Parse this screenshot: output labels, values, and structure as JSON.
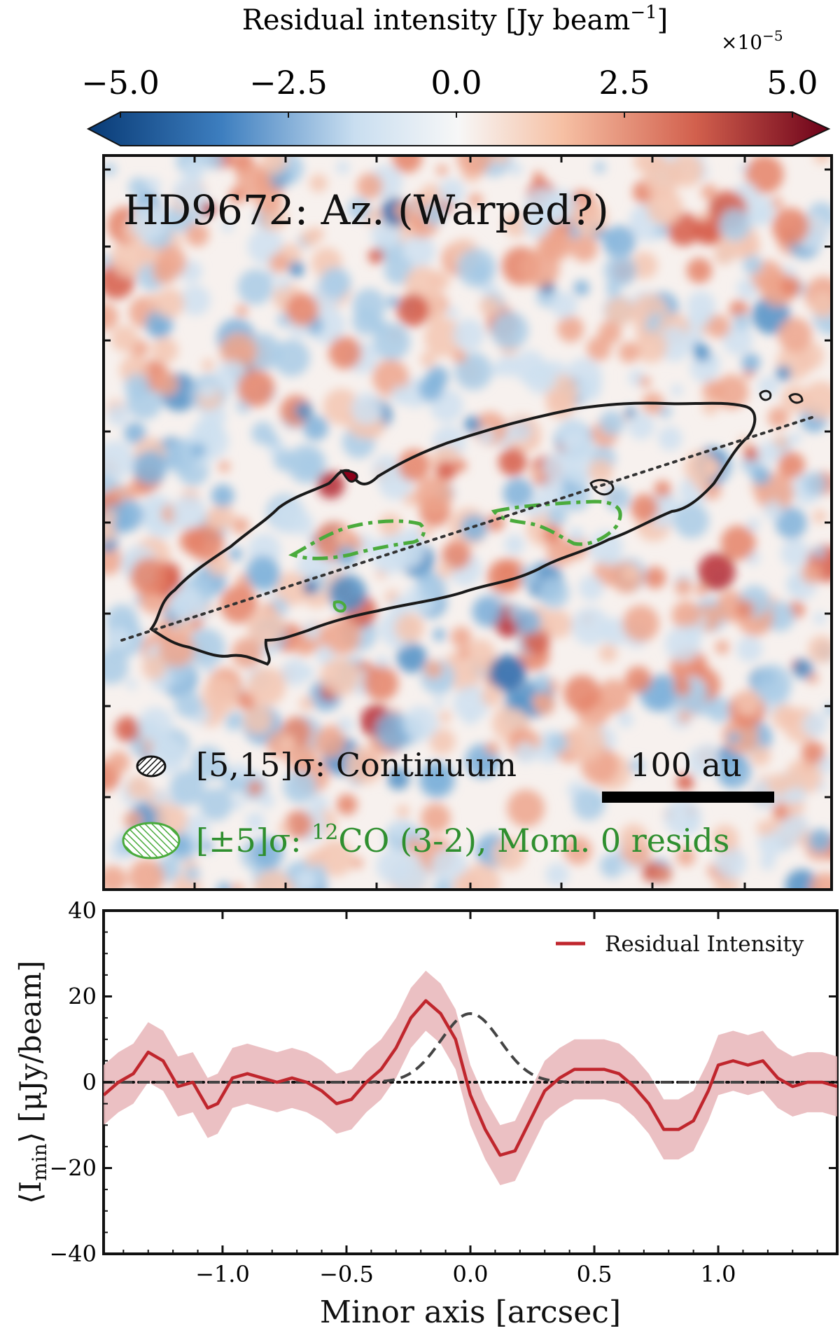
{
  "colorbar": {
    "label": "Residual intensity [Jy beam",
    "label_sup": "−1",
    "label_close": "]",
    "multiplier_base": "×10",
    "multiplier_exp": "−5",
    "tick_labels": [
      "−5.0",
      "−2.5",
      "0.0",
      "2.5",
      "5.0"
    ],
    "tick_values": [
      -5.0,
      -2.5,
      0.0,
      2.5,
      5.0
    ],
    "range": [
      -5.0,
      5.0
    ],
    "colors": {
      "deep_blue": "#083a75",
      "mid_blue": "#3d7ebf",
      "light_blue": "#c9def0",
      "white": "#f7f7f7",
      "light_red": "#f6c0a4",
      "mid_red": "#d2604d",
      "deep_red": "#6b0019"
    }
  },
  "map": {
    "title": "HD9672: Az. (Warped?)",
    "legend_continuum_label": "[5,15]σ: Continuum",
    "legend_co_prefix": "[±5]σ: ",
    "legend_co_isotope": "12",
    "legend_co_rest": "CO (3-2), Mom. 0 resids",
    "scalebar_label": "100 au",
    "colors": {
      "continuum_contour": "#1a1a1a",
      "co_contour": "#4aab3c",
      "axis_line": "#333333"
    }
  },
  "profile": {
    "legend_label": "Residual Intensity",
    "ylabel_open": "⟨I",
    "ylabel_sub": "min",
    "ylabel_rest": "⟩ [μJy/beam]",
    "xlabel": "Minor axis [arcsec]",
    "colors": {
      "line": "#c0262d",
      "band": "#e8b5b8",
      "model": "#444444"
    }
  },
  "chart_data": {
    "type": "line",
    "title": "",
    "xlabel": "Minor axis [arcsec]",
    "ylabel": "⟨I_min⟩ [μJy/beam]",
    "xlim": [
      -1.48,
      1.48
    ],
    "ylim": [
      -40,
      40
    ],
    "x_ticks": [
      -1.0,
      -0.5,
      0.0,
      0.5,
      1.0
    ],
    "x_tick_labels": [
      "−1.0",
      "−0.5",
      "0.0",
      "0.5",
      "1.0"
    ],
    "y_ticks": [
      -40,
      -20,
      0,
      20,
      40
    ],
    "y_tick_labels": [
      "−40",
      "−20",
      "0",
      "20",
      "40"
    ],
    "legend_position": "top-right",
    "series": [
      {
        "name": "Residual Intensity",
        "x": [
          -1.48,
          -1.42,
          -1.36,
          -1.3,
          -1.24,
          -1.18,
          -1.12,
          -1.06,
          -1.02,
          -0.96,
          -0.9,
          -0.84,
          -0.78,
          -0.72,
          -0.66,
          -0.6,
          -0.54,
          -0.48,
          -0.42,
          -0.36,
          -0.3,
          -0.24,
          -0.18,
          -0.12,
          -0.06,
          0.0,
          0.06,
          0.12,
          0.18,
          0.24,
          0.3,
          0.36,
          0.42,
          0.48,
          0.54,
          0.6,
          0.66,
          0.72,
          0.78,
          0.84,
          0.9,
          0.96,
          1.0,
          1.06,
          1.12,
          1.18,
          1.24,
          1.3,
          1.36,
          1.42,
          1.48
        ],
        "y": [
          -3,
          0,
          2,
          7,
          5,
          -1,
          0,
          -6,
          -5,
          1,
          2,
          1,
          0,
          1,
          0,
          -2,
          -5,
          -4,
          0,
          3,
          8,
          15,
          19,
          16,
          10,
          -3,
          -11,
          -17,
          -16,
          -9,
          -2,
          1,
          3,
          3,
          3,
          2,
          -1,
          -5,
          -11,
          -11,
          -9,
          -2,
          4,
          5,
          4,
          5,
          1,
          -1,
          0,
          0,
          -1
        ],
        "error_band": {
          "lower": [
            -10,
            -7,
            -5,
            0,
            -2,
            -8,
            -7,
            -13,
            -12,
            -6,
            -5,
            -6,
            -7,
            -6,
            -7,
            -9,
            -12,
            -11,
            -7,
            -4,
            1,
            8,
            12,
            9,
            3,
            -10,
            -18,
            -24,
            -23,
            -16,
            -9,
            -6,
            -4,
            -4,
            -4,
            -5,
            -8,
            -12,
            -18,
            -18,
            -16,
            -9,
            -3,
            -2,
            -3,
            -2,
            -6,
            -8,
            -7,
            -7,
            -8
          ],
          "upper": [
            4,
            7,
            9,
            14,
            12,
            6,
            7,
            1,
            2,
            8,
            9,
            8,
            7,
            8,
            7,
            5,
            2,
            3,
            7,
            10,
            15,
            22,
            26,
            23,
            17,
            4,
            -4,
            -10,
            -9,
            -2,
            5,
            8,
            10,
            10,
            10,
            9,
            6,
            2,
            -4,
            -4,
            -2,
            5,
            11,
            12,
            11,
            12,
            8,
            6,
            7,
            7,
            6
          ]
        }
      },
      {
        "name": "model (dashed)",
        "style": "dashed",
        "formula": "gaussian",
        "amplitude": 16,
        "center": 0.0,
        "sigma": 0.12
      },
      {
        "name": "zero level (dotted)",
        "style": "dotted",
        "y_const": 0
      }
    ]
  }
}
